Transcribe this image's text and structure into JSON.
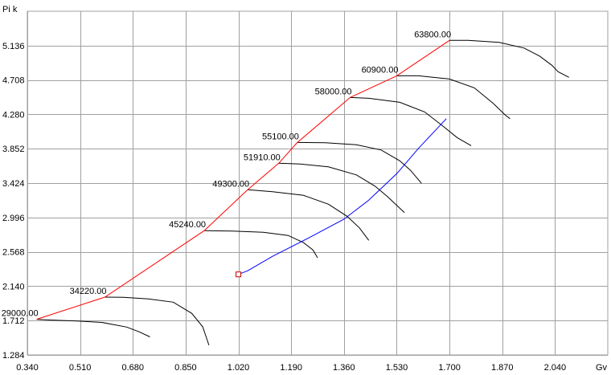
{
  "chart_data": {
    "type": "line",
    "ylabel": "Pi k",
    "xlabel": "Gv",
    "xlim": [
      0.34,
      2.21
    ],
    "ylim": [
      1.284,
      5.564
    ],
    "x_ticks": [
      0.34,
      0.51,
      0.68,
      0.85,
      1.02,
      1.19,
      1.36,
      1.53,
      1.7,
      1.87,
      2.04
    ],
    "y_ticks": [
      1.284,
      1.712,
      2.14,
      2.568,
      2.996,
      3.424,
      3.852,
      4.28,
      4.708,
      5.136
    ],
    "x_tick_labels": [
      "0.340",
      "0.510",
      "0.680",
      "0.850",
      "1.020",
      "1.190",
      "1.360",
      "1.530",
      "1.700",
      "1.870",
      "2.040"
    ],
    "y_tick_labels": [
      "1.284",
      "1.712",
      "2.140",
      "2.568",
      "2.996",
      "3.424",
      "3.852",
      "4.280",
      "4.708",
      "5.136"
    ],
    "grid": true,
    "colors": {
      "surge_line": "#ff0000",
      "operating_line": "#0000ff",
      "speed_lines": "#000000",
      "grid": "#a0a0a0",
      "marker": "#c00000"
    },
    "speed_lines": [
      {
        "label": "29000.00",
        "x": [
          0.37,
          0.42,
          0.5,
          0.58,
          0.66,
          0.7,
          0.735
        ],
        "y": [
          1.728,
          1.718,
          1.707,
          1.689,
          1.631,
          1.572,
          1.509
        ]
      },
      {
        "label": "34220.00",
        "x": [
          0.59,
          0.65,
          0.73,
          0.81,
          0.87,
          0.905,
          0.925
        ],
        "y": [
          2.004,
          2.001,
          1.981,
          1.941,
          1.801,
          1.635,
          1.405
        ]
      },
      {
        "label": "45240.00",
        "x": [
          0.91,
          1.0,
          1.1,
          1.18,
          1.23,
          1.26,
          1.275
        ],
        "y": [
          2.832,
          2.827,
          2.812,
          2.772,
          2.682,
          2.592,
          2.494
        ]
      },
      {
        "label": "49300.00",
        "x": [
          1.05,
          1.13,
          1.23,
          1.31,
          1.37,
          1.41,
          1.44
        ],
        "y": [
          3.341,
          3.316,
          3.271,
          3.161,
          3.011,
          2.866,
          2.711
        ]
      },
      {
        "label": "51910.00",
        "x": [
          1.15,
          1.22,
          1.31,
          1.4,
          1.46,
          1.5,
          1.555
        ],
        "y": [
          3.671,
          3.661,
          3.626,
          3.526,
          3.386,
          3.256,
          3.056
        ]
      },
      {
        "label": "55100.00",
        "x": [
          1.21,
          1.3,
          1.4,
          1.48,
          1.54,
          1.575,
          1.61
        ],
        "y": [
          3.93,
          3.926,
          3.901,
          3.836,
          3.701,
          3.581,
          3.421
        ]
      },
      {
        "label": "58000.00",
        "x": [
          1.38,
          1.44,
          1.54,
          1.62,
          1.68,
          1.725,
          1.77
        ],
        "y": [
          4.49,
          4.48,
          4.43,
          4.31,
          4.13,
          3.99,
          3.89
        ]
      },
      {
        "label": "60900.00",
        "x": [
          1.53,
          1.6,
          1.7,
          1.78,
          1.84,
          1.88,
          1.895
        ],
        "y": [
          4.76,
          4.76,
          4.72,
          4.61,
          4.42,
          4.27,
          4.226
        ]
      },
      {
        "label": "63800.00",
        "x": [
          1.7,
          1.76,
          1.86,
          1.94,
          1.99,
          2.03,
          2.05,
          2.085
        ],
        "y": [
          5.201,
          5.201,
          5.176,
          5.106,
          5.006,
          4.891,
          4.811,
          4.741
        ]
      }
    ],
    "surge_line": {
      "x": [
        0.37,
        0.59,
        0.91,
        1.05,
        1.15,
        1.21,
        1.38,
        1.53,
        1.7
      ],
      "y": [
        1.728,
        2.004,
        2.832,
        3.341,
        3.671,
        3.93,
        4.49,
        4.76,
        5.201
      ]
    },
    "operating_line": {
      "x": [
        1.02,
        1.05,
        1.13,
        1.25,
        1.36,
        1.44,
        1.53,
        1.6,
        1.69
      ],
      "y": [
        2.287,
        2.332,
        2.512,
        2.748,
        2.974,
        3.211,
        3.541,
        3.856,
        4.226
      ]
    },
    "marker": {
      "x": 1.02,
      "y": 2.287
    }
  }
}
